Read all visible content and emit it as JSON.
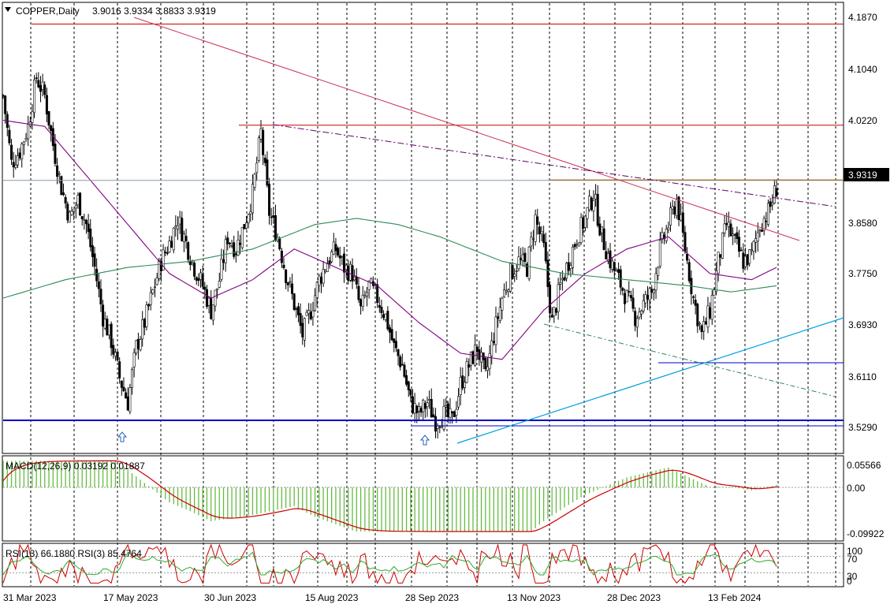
{
  "header": {
    "symbol": "COPPER,Daily",
    "ohlc": "3.9016 3.9334 3.8833 3.9319"
  },
  "price_axis": {
    "ticks": [
      "4.1870",
      "4.1040",
      "4.0220",
      "3.8580",
      "3.7750",
      "3.6930",
      "3.6110",
      "3.5290"
    ],
    "current_price": "3.9319"
  },
  "date_axis": {
    "labels": [
      "31 Mar 2023",
      "17 May 2023",
      "30 Jun 2023",
      "15 Aug 2023",
      "28 Sep 2023",
      "13 Nov 2023",
      "28 Dec 2023",
      "13 Feb 2024"
    ]
  },
  "macd": {
    "title": "MACD(12,26,9) 0.03192 0.01887",
    "ticks": [
      "0.05566",
      "0.00",
      "-0.09922"
    ]
  },
  "rsi": {
    "title": "RSI(13) 66.1880  RSI(3) 85.4764",
    "ticks": [
      "100",
      "70",
      "30",
      "0"
    ]
  },
  "colors": {
    "bull": "#2e8b2e",
    "bear": "#2e8b2e",
    "ma_fast": "#800080",
    "ma_slow": "#2e8b57",
    "resistance": "#cc0000",
    "support": "#0000cc",
    "trend_blue": "#00a0e0",
    "macd_hist": "#66bb44",
    "macd_signal": "#cc0000",
    "rsi13": "#2eaa2e",
    "rsi3": "#cc0000"
  },
  "chart_data": {
    "type": "candlestick",
    "title": "COPPER,Daily",
    "ylim": [
      3.51,
      4.21
    ],
    "x_start": "31 Mar 2023",
    "x_end": "13 Feb 2024",
    "levels": [
      4.187,
      4.022,
      3.9319,
      3.529
    ],
    "last_close": 3.9319,
    "path_close": [
      [
        0,
        4.07
      ],
      [
        4,
        3.96
      ],
      [
        8,
        3.98
      ],
      [
        12,
        4.02
      ],
      [
        16,
        4.1
      ],
      [
        20,
        4.07
      ],
      [
        24,
        3.99
      ],
      [
        28,
        3.92
      ],
      [
        32,
        3.87
      ],
      [
        36,
        3.9
      ],
      [
        40,
        3.86
      ],
      [
        44,
        3.79
      ],
      [
        48,
        3.71
      ],
      [
        52,
        3.67
      ],
      [
        56,
        3.61
      ],
      [
        60,
        3.57
      ],
      [
        64,
        3.66
      ],
      [
        68,
        3.7
      ],
      [
        72,
        3.75
      ],
      [
        76,
        3.8
      ],
      [
        80,
        3.83
      ],
      [
        84,
        3.87
      ],
      [
        88,
        3.83
      ],
      [
        92,
        3.79
      ],
      [
        96,
        3.76
      ],
      [
        100,
        3.72
      ],
      [
        104,
        3.77
      ],
      [
        108,
        3.84
      ],
      [
        112,
        3.82
      ],
      [
        116,
        3.86
      ],
      [
        120,
        3.91
      ],
      [
        124,
        4.01
      ],
      [
        128,
        3.88
      ],
      [
        132,
        3.84
      ],
      [
        136,
        3.78
      ],
      [
        140,
        3.73
      ],
      [
        144,
        3.68
      ],
      [
        148,
        3.72
      ],
      [
        152,
        3.77
      ],
      [
        156,
        3.8
      ],
      [
        160,
        3.82
      ],
      [
        164,
        3.79
      ],
      [
        168,
        3.78
      ],
      [
        172,
        3.72
      ],
      [
        176,
        3.76
      ],
      [
        180,
        3.74
      ],
      [
        184,
        3.71
      ],
      [
        188,
        3.66
      ],
      [
        192,
        3.63
      ],
      [
        196,
        3.57
      ],
      [
        200,
        3.55
      ],
      [
        204,
        3.57
      ],
      [
        208,
        3.54
      ],
      [
        212,
        3.55
      ],
      [
        216,
        3.54
      ],
      [
        220,
        3.6
      ],
      [
        224,
        3.63
      ],
      [
        228,
        3.66
      ],
      [
        232,
        3.61
      ],
      [
        236,
        3.68
      ],
      [
        240,
        3.74
      ],
      [
        244,
        3.78
      ],
      [
        248,
        3.8
      ],
      [
        252,
        3.79
      ],
      [
        256,
        3.87
      ],
      [
        260,
        3.82
      ],
      [
        264,
        3.7
      ],
      [
        268,
        3.76
      ],
      [
        272,
        3.8
      ],
      [
        276,
        3.84
      ],
      [
        280,
        3.87
      ],
      [
        284,
        3.91
      ],
      [
        288,
        3.84
      ],
      [
        292,
        3.8
      ],
      [
        296,
        3.77
      ],
      [
        300,
        3.74
      ],
      [
        304,
        3.71
      ],
      [
        308,
        3.73
      ],
      [
        312,
        3.75
      ],
      [
        316,
        3.82
      ],
      [
        320,
        3.86
      ],
      [
        324,
        3.9
      ],
      [
        328,
        3.82
      ],
      [
        332,
        3.74
      ],
      [
        336,
        3.68
      ],
      [
        340,
        3.72
      ],
      [
        344,
        3.8
      ],
      [
        348,
        3.86
      ],
      [
        352,
        3.83
      ],
      [
        356,
        3.8
      ],
      [
        360,
        3.81
      ],
      [
        364,
        3.86
      ],
      [
        368,
        3.88
      ],
      [
        372,
        3.92
      ]
    ],
    "ma_fast": [
      [
        0,
        4.03
      ],
      [
        20,
        4.02
      ],
      [
        40,
        3.94
      ],
      [
        60,
        3.86
      ],
      [
        80,
        3.78
      ],
      [
        100,
        3.74
      ],
      [
        120,
        3.77
      ],
      [
        140,
        3.82
      ],
      [
        160,
        3.79
      ],
      [
        180,
        3.76
      ],
      [
        200,
        3.7
      ],
      [
        220,
        3.65
      ],
      [
        240,
        3.64
      ],
      [
        260,
        3.72
      ],
      [
        280,
        3.78
      ],
      [
        300,
        3.82
      ],
      [
        320,
        3.84
      ],
      [
        340,
        3.78
      ],
      [
        360,
        3.77
      ],
      [
        372,
        3.79
      ]
    ],
    "ma_slow": [
      [
        0,
        3.74
      ],
      [
        30,
        3.77
      ],
      [
        60,
        3.79
      ],
      [
        90,
        3.8
      ],
      [
        120,
        3.82
      ],
      [
        150,
        3.86
      ],
      [
        170,
        3.87
      ],
      [
        190,
        3.86
      ],
      [
        210,
        3.84
      ],
      [
        240,
        3.8
      ],
      [
        270,
        3.78
      ],
      [
        300,
        3.77
      ],
      [
        330,
        3.76
      ],
      [
        350,
        3.75
      ],
      [
        372,
        3.76
      ]
    ]
  }
}
